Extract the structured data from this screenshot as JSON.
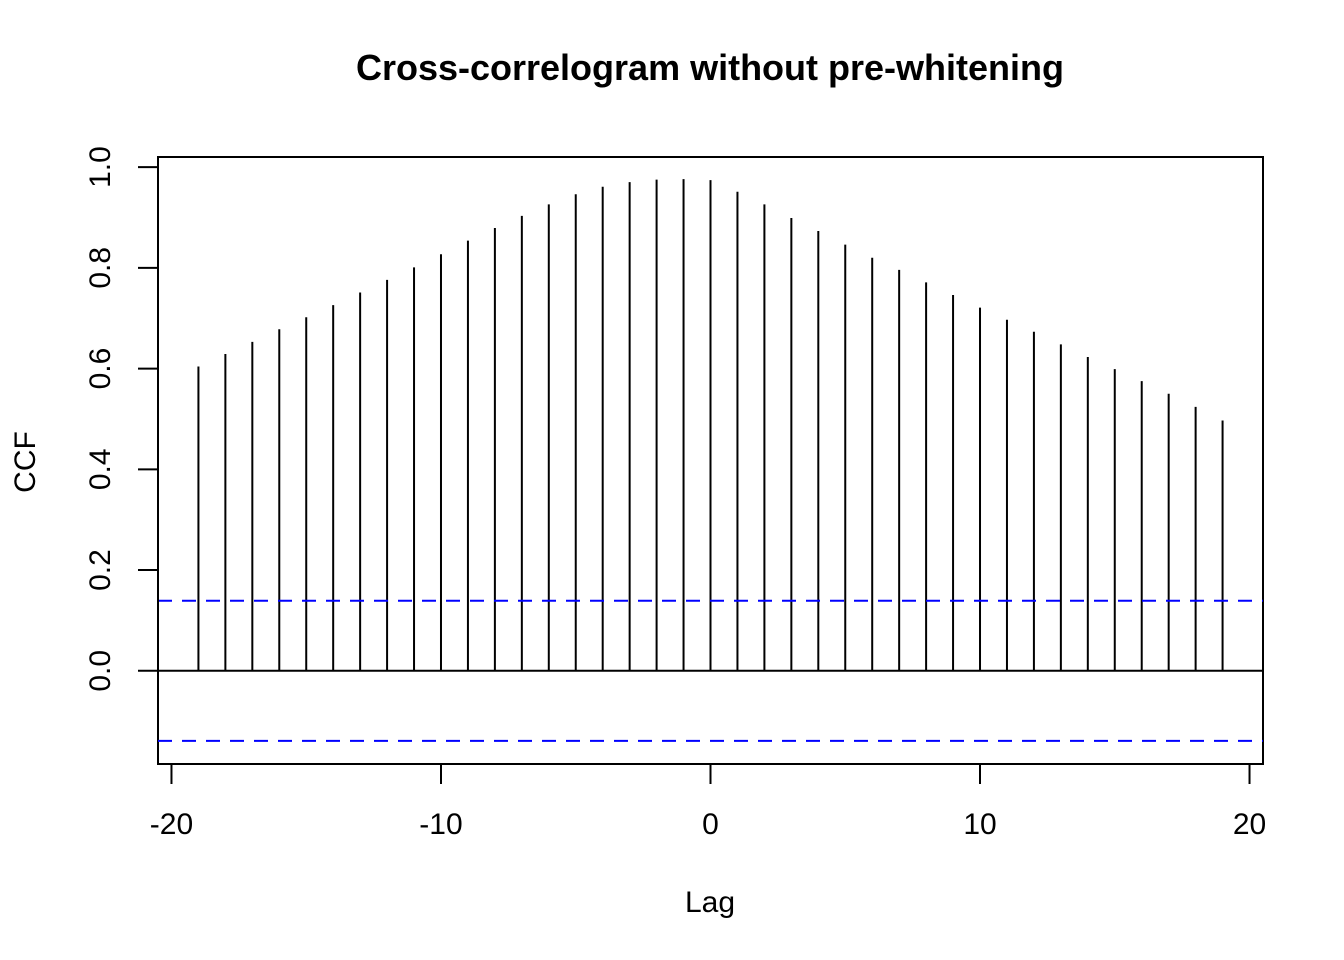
{
  "chart_data": {
    "type": "bar",
    "style": "lag-spike-plot",
    "title": "Cross-correlogram without pre-whitening",
    "xlabel": "Lag",
    "ylabel": "CCF",
    "xlim": [
      -20.5,
      20.5
    ],
    "ylim": [
      -0.185,
      1.02
    ],
    "x_ticks": [
      -20,
      -10,
      0,
      10,
      20
    ],
    "x_tick_labels": [
      "-20",
      "-10",
      "0",
      "10",
      "20"
    ],
    "y_ticks": [
      0.0,
      0.2,
      0.4,
      0.6,
      0.8,
      1.0
    ],
    "y_tick_labels": [
      "0.0",
      "0.2",
      "0.4",
      "0.6",
      "0.8",
      "1.0"
    ],
    "grid": false,
    "lags": [
      -19,
      -18,
      -17,
      -16,
      -15,
      -14,
      -13,
      -12,
      -11,
      -10,
      -9,
      -8,
      -7,
      -6,
      -5,
      -4,
      -3,
      -2,
      -1,
      0,
      1,
      2,
      3,
      4,
      5,
      6,
      7,
      8,
      9,
      10,
      11,
      12,
      13,
      14,
      15,
      16,
      17,
      18,
      19
    ],
    "values": [
      0.604,
      0.629,
      0.653,
      0.678,
      0.702,
      0.726,
      0.751,
      0.776,
      0.801,
      0.827,
      0.854,
      0.879,
      0.903,
      0.926,
      0.946,
      0.961,
      0.97,
      0.975,
      0.976,
      0.974,
      0.951,
      0.926,
      0.899,
      0.873,
      0.846,
      0.82,
      0.796,
      0.771,
      0.746,
      0.721,
      0.697,
      0.673,
      0.648,
      0.623,
      0.599,
      0.575,
      0.55,
      0.524,
      0.497
    ],
    "confidence_bounds": [
      0.139,
      -0.139
    ],
    "spike_color": "#000000",
    "bound_color": "#0000ff"
  }
}
